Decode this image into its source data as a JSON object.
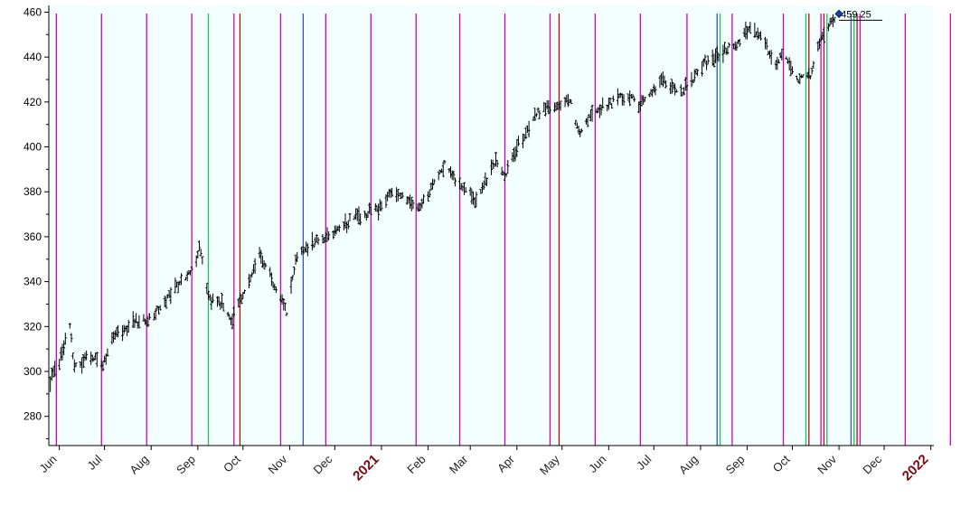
{
  "chart_data": {
    "type": "ohlc",
    "title": "",
    "xlabel": "",
    "ylabel": "",
    "ylim": [
      267,
      463
    ],
    "y_ticks": [
      280,
      300,
      320,
      340,
      360,
      380,
      400,
      420,
      440,
      460
    ],
    "x_range": [
      "2020-05-25",
      "2022-01-03"
    ],
    "x_ticks": [
      {
        "date": "2020-06-01",
        "label": "Jun",
        "year": false
      },
      {
        "date": "2020-07-01",
        "label": "Jul",
        "year": false
      },
      {
        "date": "2020-08-01",
        "label": "Aug",
        "year": false
      },
      {
        "date": "2020-09-01",
        "label": "Sep",
        "year": false
      },
      {
        "date": "2020-10-01",
        "label": "Oct",
        "year": false
      },
      {
        "date": "2020-11-01",
        "label": "Nov",
        "year": false
      },
      {
        "date": "2020-12-01",
        "label": "Dec",
        "year": false
      },
      {
        "date": "2021-01-01",
        "label": "2021",
        "year": true
      },
      {
        "date": "2021-02-01",
        "label": "Feb",
        "year": false
      },
      {
        "date": "2021-03-01",
        "label": "Mar",
        "year": false
      },
      {
        "date": "2021-04-01",
        "label": "Apr",
        "year": false
      },
      {
        "date": "2021-05-01",
        "label": "May",
        "year": false
      },
      {
        "date": "2021-06-01",
        "label": "Jun",
        "year": false
      },
      {
        "date": "2021-07-01",
        "label": "Jul",
        "year": false
      },
      {
        "date": "2021-08-01",
        "label": "Aug",
        "year": false
      },
      {
        "date": "2021-09-01",
        "label": "Sep",
        "year": false
      },
      {
        "date": "2021-10-01",
        "label": "Oct",
        "year": false
      },
      {
        "date": "2021-11-01",
        "label": "Nov",
        "year": false
      },
      {
        "date": "2021-12-01",
        "label": "Dec",
        "year": false
      },
      {
        "date": "2022-01-01",
        "label": "2022",
        "year": true
      }
    ],
    "price_path": [
      [
        "2020-05-26",
        296
      ],
      [
        "2020-06-01",
        305
      ],
      [
        "2020-06-08",
        320
      ],
      [
        "2020-06-11",
        301
      ],
      [
        "2020-06-22",
        308
      ],
      [
        "2020-06-29",
        302
      ],
      [
        "2020-07-06",
        314
      ],
      [
        "2020-07-20",
        322
      ],
      [
        "2020-07-31",
        323
      ],
      [
        "2020-08-17",
        337
      ],
      [
        "2020-08-31",
        347
      ],
      [
        "2020-09-02",
        356
      ],
      [
        "2020-09-08",
        333
      ],
      [
        "2020-09-18",
        330
      ],
      [
        "2020-09-23",
        322
      ],
      [
        "2020-10-01",
        335
      ],
      [
        "2020-10-12",
        352
      ],
      [
        "2020-10-20",
        342
      ],
      [
        "2020-10-30",
        326
      ],
      [
        "2020-11-05",
        350
      ],
      [
        "2020-11-09",
        354
      ],
      [
        "2020-11-30",
        362
      ],
      [
        "2020-12-15",
        369
      ],
      [
        "2020-12-31",
        373
      ],
      [
        "2021-01-08",
        380
      ],
      [
        "2021-01-27",
        373
      ],
      [
        "2021-02-12",
        392
      ],
      [
        "2021-02-26",
        381
      ],
      [
        "2021-03-04",
        376
      ],
      [
        "2021-03-18",
        393
      ],
      [
        "2021-03-24",
        387
      ],
      [
        "2021-04-01",
        400
      ],
      [
        "2021-04-16",
        416
      ],
      [
        "2021-05-07",
        421
      ],
      [
        "2021-05-12",
        406
      ],
      [
        "2021-05-21",
        415
      ],
      [
        "2021-06-15",
        424
      ],
      [
        "2021-06-21",
        418
      ],
      [
        "2021-07-07",
        430
      ],
      [
        "2021-07-19",
        424
      ],
      [
        "2021-08-03",
        437
      ],
      [
        "2021-08-26",
        446
      ],
      [
        "2021-09-02",
        453
      ],
      [
        "2021-09-13",
        447
      ],
      [
        "2021-09-20",
        435
      ],
      [
        "2021-09-24",
        442
      ],
      [
        "2021-10-04",
        430
      ],
      [
        "2021-10-13",
        432
      ],
      [
        "2021-10-22",
        451
      ],
      [
        "2021-11-01",
        459.25
      ]
    ],
    "last_price": {
      "date": "2021-11-01",
      "value": 459.25,
      "label": "459.25"
    },
    "vertical_lines": [
      {
        "date": "2020-05-30",
        "color": "#cc00cc"
      },
      {
        "date": "2020-06-29",
        "color": "#cc00cc"
      },
      {
        "date": "2020-07-29",
        "color": "#cc00cc"
      },
      {
        "date": "2020-08-28",
        "color": "#cc00cc"
      },
      {
        "date": "2020-09-08",
        "color": "#22bb55"
      },
      {
        "date": "2020-09-25",
        "color": "#cc00cc"
      },
      {
        "date": "2020-09-29",
        "color": "#aa1111"
      },
      {
        "date": "2020-10-26",
        "color": "#cc00cc"
      },
      {
        "date": "2020-11-10",
        "color": "#3355aa"
      },
      {
        "date": "2020-11-25",
        "color": "#cc00cc"
      },
      {
        "date": "2020-12-25",
        "color": "#cc00cc"
      },
      {
        "date": "2021-01-24",
        "color": "#cc00cc"
      },
      {
        "date": "2021-02-22",
        "color": "#cc00cc"
      },
      {
        "date": "2021-03-24",
        "color": "#cc00cc"
      },
      {
        "date": "2021-04-23",
        "color": "#cc00cc"
      },
      {
        "date": "2021-04-29",
        "color": "#aa1111"
      },
      {
        "date": "2021-05-23",
        "color": "#cc00cc"
      },
      {
        "date": "2021-06-22",
        "color": "#cc00cc"
      },
      {
        "date": "2021-07-23",
        "color": "#cc00cc"
      },
      {
        "date": "2021-08-12",
        "color": "#3355aa"
      },
      {
        "date": "2021-08-14",
        "color": "#22bb55"
      },
      {
        "date": "2021-08-22",
        "color": "#cc00cc"
      },
      {
        "date": "2021-09-25",
        "color": "#cc00cc"
      },
      {
        "date": "2021-10-10",
        "color": "#22bb55"
      },
      {
        "date": "2021-10-12",
        "color": "#aa1111"
      },
      {
        "date": "2021-10-20",
        "color": "#cc00cc"
      },
      {
        "date": "2021-10-22",
        "color": "#aa1111"
      },
      {
        "date": "2021-10-24",
        "color": "#22bb55"
      },
      {
        "date": "2021-11-09",
        "color": "#3355aa"
      },
      {
        "date": "2021-11-11",
        "color": "#22bb55"
      },
      {
        "date": "2021-11-13",
        "color": "#aa1111"
      },
      {
        "date": "2021-11-15",
        "color": "#cc00cc"
      },
      {
        "date": "2021-12-15",
        "color": "#cc00cc"
      },
      {
        "date": "2022-01-14",
        "color": "#cc00cc"
      }
    ],
    "grid": false,
    "legend": "none",
    "colors": {
      "background": "#f2fffe",
      "bars": "#000000",
      "axis": "#000000",
      "month_label": "#222222",
      "year_label": "#7a0a10",
      "marker": "#1a3fa8"
    }
  }
}
